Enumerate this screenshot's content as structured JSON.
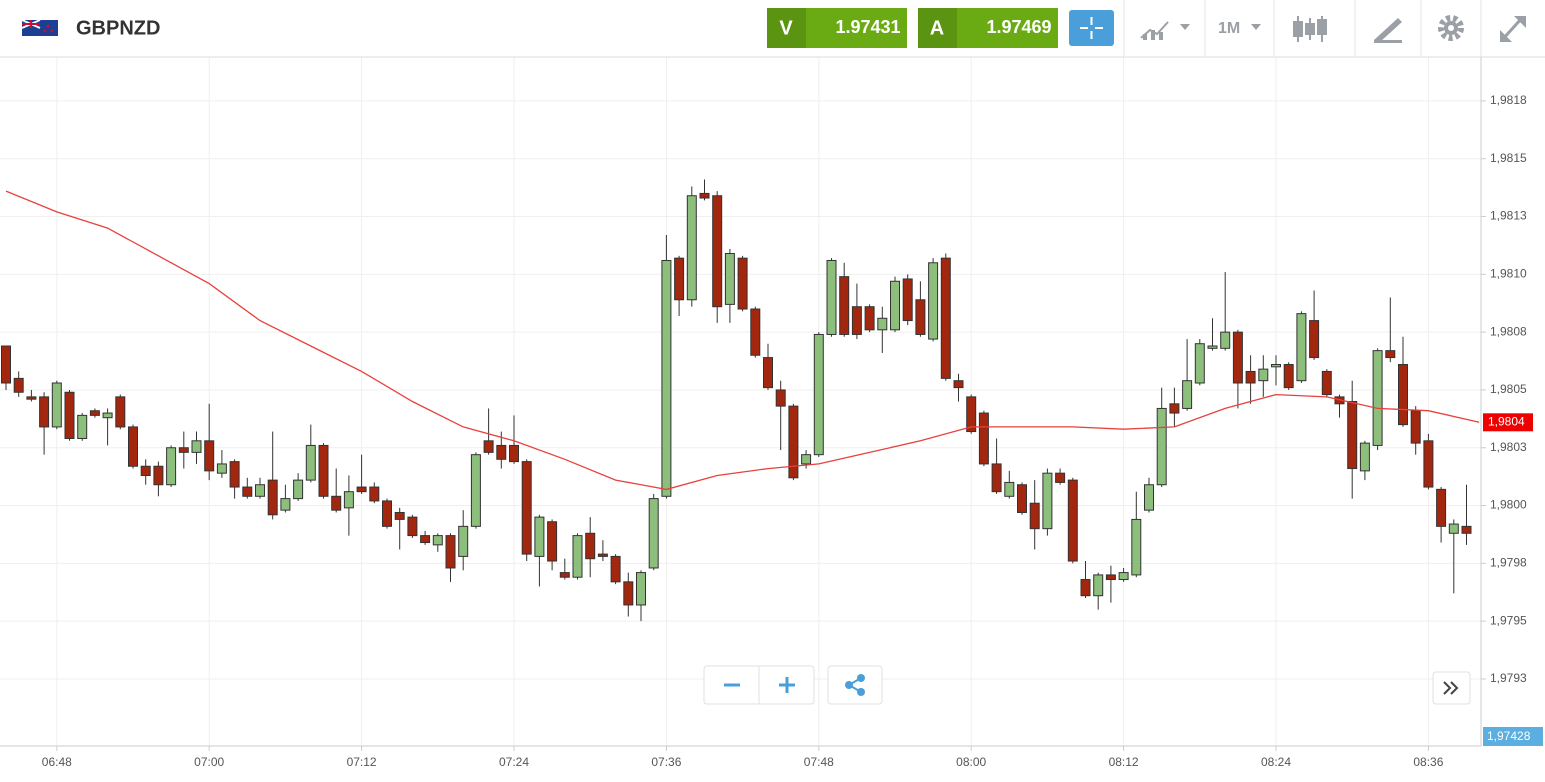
{
  "header": {
    "symbol": "GBPNZD",
    "sell_label": "V",
    "sell_price": "1.97431",
    "buy_label": "A",
    "buy_price": "1.97469",
    "timeframe": "1M"
  },
  "chart_data": {
    "type": "candlestick",
    "x": [
      "06:44",
      "06:45",
      "06:46",
      "06:47",
      "06:48",
      "06:49",
      "06:50",
      "06:51",
      "06:52",
      "06:53",
      "06:54",
      "06:55",
      "06:56",
      "06:57",
      "06:58",
      "06:59",
      "07:00",
      "07:01",
      "07:02",
      "07:03",
      "07:04",
      "07:05",
      "07:06",
      "07:07",
      "07:08",
      "07:09",
      "07:10",
      "07:11",
      "07:12",
      "07:13",
      "07:14",
      "07:15",
      "07:16",
      "07:17",
      "07:18",
      "07:19",
      "07:20",
      "07:21",
      "07:22",
      "07:23",
      "07:24",
      "07:25",
      "07:26",
      "07:27",
      "07:28",
      "07:29",
      "07:30",
      "07:31",
      "07:32",
      "07:33",
      "07:34",
      "07:35",
      "07:36",
      "07:37",
      "07:38",
      "07:39",
      "07:40",
      "07:41",
      "07:42",
      "07:43",
      "07:44",
      "07:45",
      "07:46",
      "07:47",
      "07:48",
      "07:49",
      "07:50",
      "07:51",
      "07:52",
      "07:53",
      "07:54",
      "07:55",
      "07:56",
      "07:57",
      "07:58",
      "07:59",
      "08:00",
      "08:01",
      "08:02",
      "08:03",
      "08:04",
      "08:05",
      "08:06",
      "08:07",
      "08:08",
      "08:09",
      "08:10",
      "08:11",
      "08:12",
      "08:13",
      "08:14",
      "08:15",
      "08:16",
      "08:17",
      "08:18",
      "08:19",
      "08:20",
      "08:21",
      "08:22",
      "08:23",
      "08:24",
      "08:25",
      "08:26",
      "08:27",
      "08:28",
      "08:29",
      "08:30",
      "08:31",
      "08:32",
      "08:33",
      "08:34",
      "08:35",
      "08:36",
      "08:37",
      "08:38",
      "08:39"
    ],
    "open": [
      1.98069,
      1.98055,
      1.98047,
      1.98047,
      1.98034,
      1.98049,
      1.98029,
      1.98041,
      1.98038,
      1.98047,
      1.98034,
      1.98017,
      1.98017,
      1.98009,
      1.98025,
      1.98023,
      1.98028,
      1.98014,
      1.98019,
      1.98008,
      1.98004,
      1.98011,
      1.97998,
      1.98003,
      1.98011,
      1.98026,
      1.98004,
      1.97999,
      1.98008,
      1.98008,
      1.98002,
      1.97997,
      1.97995,
      1.97987,
      1.97983,
      1.97987,
      1.97978,
      1.97991,
      1.98028,
      1.98026,
      1.98026,
      1.98019,
      1.97978,
      1.97993,
      1.97971,
      1.97969,
      1.97988,
      1.97979,
      1.97978,
      1.97967,
      1.97957,
      1.97973,
      1.98004,
      1.98107,
      1.98089,
      1.98135,
      1.98134,
      1.98087,
      1.98107,
      1.98085,
      1.98064,
      1.9805,
      1.98043,
      1.98018,
      1.98022,
      1.98074,
      1.98099,
      1.98086,
      1.98086,
      1.98076,
      1.98076,
      1.98098,
      1.98089,
      1.98072,
      1.98107,
      1.98054,
      1.98047,
      1.9804,
      1.98018,
      1.98004,
      1.98009,
      1.98001,
      1.9799,
      1.98014,
      1.98011,
      1.97968,
      1.97961,
      1.9797,
      1.97968,
      1.9797,
      1.97998,
      1.98009,
      1.98044,
      1.98042,
      1.98053,
      1.98068,
      1.98068,
      1.98075,
      1.98058,
      1.98054,
      1.9806,
      1.98061,
      1.98054,
      1.9808,
      1.98058,
      1.98047,
      1.98045,
      1.98015,
      1.98026,
      1.98067,
      1.98061,
      1.98041,
      1.98028,
      1.98007,
      1.97988,
      1.97991
    ],
    "high": [
      1.98069,
      1.98058,
      1.9805,
      1.98049,
      1.98054,
      1.9805,
      1.9804,
      1.98042,
      1.98042,
      1.98048,
      1.98035,
      1.9802,
      1.98019,
      1.98026,
      1.98032,
      1.98032,
      1.98044,
      1.98024,
      1.9802,
      1.98012,
      1.98012,
      1.98032,
      1.98009,
      1.98014,
      1.98035,
      1.98027,
      1.98016,
      1.98013,
      1.98022,
      1.9801,
      1.98003,
      1.97999,
      1.97996,
      1.97989,
      1.97988,
      1.97988,
      1.97998,
      1.98023,
      1.98042,
      1.98032,
      1.98039,
      1.9802,
      1.97996,
      1.97994,
      1.97977,
      1.97988,
      1.97995,
      1.97985,
      1.97979,
      1.97971,
      1.97972,
      1.98005,
      1.98117,
      1.98108,
      1.98138,
      1.98141,
      1.98136,
      1.98111,
      1.98108,
      1.98086,
      1.9807,
      1.98054,
      1.98044,
      1.98024,
      1.98075,
      1.98107,
      1.98105,
      1.98096,
      1.98087,
      1.98086,
      1.98099,
      1.981,
      1.98097,
      1.98107,
      1.98109,
      1.98057,
      1.98048,
      1.98041,
      1.98029,
      1.98015,
      1.9801,
      1.98011,
      1.98016,
      1.98016,
      1.98012,
      1.97976,
      1.97971,
      1.97974,
      1.97973,
      1.98006,
      1.98012,
      1.98051,
      1.98051,
      1.98072,
      1.98072,
      1.98081,
      1.98101,
      1.98076,
      1.98065,
      1.98065,
      1.98065,
      1.98062,
      1.98084,
      1.98093,
      1.98059,
      1.98048,
      1.98054,
      1.98028,
      1.98068,
      1.9809,
      1.98073,
      1.98043,
      1.98031,
      1.98008,
      1.97994,
      1.98009
    ],
    "low": [
      1.9805,
      1.98047,
      1.98045,
      1.98022,
      1.98033,
      1.98028,
      1.98028,
      1.98038,
      1.98026,
      1.98033,
      1.98016,
      1.98009,
      1.98004,
      1.98008,
      1.98016,
      1.98018,
      1.98011,
      1.98012,
      1.98003,
      1.98003,
      1.98003,
      1.97994,
      1.97997,
      1.98002,
      1.9801,
      1.98003,
      1.97997,
      1.97987,
      1.98005,
      1.98001,
      1.9799,
      1.97981,
      1.97986,
      1.97983,
      1.9798,
      1.97967,
      1.97972,
      1.9799,
      1.98022,
      1.98016,
      1.98018,
      1.97976,
      1.97965,
      1.97972,
      1.97968,
      1.97968,
      1.97969,
      1.97976,
      1.97966,
      1.97952,
      1.9795,
      1.97972,
      1.98003,
      1.98082,
      1.98086,
      1.98132,
      1.98079,
      1.98079,
      1.98084,
      1.98064,
      1.9805,
      1.98024,
      1.98011,
      1.98016,
      1.98021,
      1.98073,
      1.98073,
      1.98072,
      1.98075,
      1.98066,
      1.98075,
      1.98078,
      1.98073,
      1.98071,
      1.98054,
      1.98045,
      1.98031,
      1.98017,
      1.98005,
      1.98003,
      1.97996,
      1.97981,
      1.97987,
      1.98009,
      1.97975,
      1.9796,
      1.97955,
      1.97958,
      1.97967,
      1.97969,
      1.97997,
      1.98008,
      1.98034,
      1.98041,
      1.98052,
      1.98067,
      1.98067,
      1.98042,
      1.98044,
      1.98047,
      1.98052,
      1.9805,
      1.98053,
      1.98063,
      1.98047,
      1.98038,
      1.98003,
      1.98011,
      1.98024,
      1.98062,
      1.98034,
      1.98022,
      1.98007,
      1.97984,
      1.97962,
      1.97983
    ],
    "close": [
      1.98053,
      1.98049,
      1.98046,
      1.98034,
      1.98053,
      1.98029,
      1.98039,
      1.98039,
      1.9804,
      1.98034,
      1.98017,
      1.98013,
      1.98009,
      1.98025,
      1.98023,
      1.98028,
      1.98015,
      1.98018,
      1.98008,
      1.98004,
      1.98009,
      1.97996,
      1.98003,
      1.98011,
      1.98026,
      1.98004,
      1.97998,
      1.98006,
      1.98006,
      1.98002,
      1.97991,
      1.97994,
      1.97987,
      1.97984,
      1.97987,
      1.97973,
      1.97991,
      1.98022,
      1.98023,
      1.9802,
      1.98019,
      1.97979,
      1.97995,
      1.97976,
      1.97969,
      1.97987,
      1.97977,
      1.97978,
      1.97967,
      1.97957,
      1.97971,
      1.98003,
      1.98106,
      1.98089,
      1.98134,
      1.98133,
      1.98086,
      1.98109,
      1.98085,
      1.98065,
      1.98051,
      1.98043,
      1.98012,
      1.98022,
      1.98074,
      1.98106,
      1.98074,
      1.98074,
      1.98076,
      1.98081,
      1.98097,
      1.9808,
      1.98074,
      1.98105,
      1.98055,
      1.98051,
      1.98032,
      1.98018,
      1.98006,
      1.9801,
      1.97997,
      1.9799,
      1.98014,
      1.9801,
      1.97976,
      1.97961,
      1.9797,
      1.97968,
      1.97971,
      1.97994,
      1.98009,
      1.98042,
      1.9804,
      1.98054,
      1.9807,
      1.98069,
      1.98075,
      1.98053,
      1.98053,
      1.98059,
      1.98061,
      1.98051,
      1.98083,
      1.98064,
      1.98048,
      1.98044,
      1.98016,
      1.98027,
      1.98067,
      1.98064,
      1.98035,
      1.98027,
      1.98008,
      1.97991,
      1.97992,
      1.97988
    ],
    "up_color": "#8cbf7c",
    "down_color": "#a3270f",
    "ma": {
      "color": "#e8413c",
      "x": [
        "06:44",
        "06:48",
        "06:52",
        "06:56",
        "07:00",
        "07:04",
        "07:08",
        "07:12",
        "07:16",
        "07:20",
        "07:24",
        "07:28",
        "07:32",
        "07:36",
        "07:40",
        "07:44",
        "07:48",
        "07:52",
        "07:56",
        "08:00",
        "08:04",
        "08:08",
        "08:12",
        "08:16",
        "08:20",
        "08:24",
        "08:28",
        "08:32",
        "08:36",
        "08:40"
      ],
      "values": [
        1.98136,
        1.98127,
        1.9812,
        1.98108,
        1.98096,
        1.9808,
        1.98069,
        1.98058,
        1.98045,
        1.98034,
        1.98028,
        1.9802,
        1.98011,
        1.98007,
        1.98013,
        1.98016,
        1.98018,
        1.98023,
        1.98028,
        1.98034,
        1.98034,
        1.98034,
        1.98033,
        1.98034,
        1.98042,
        1.98048,
        1.98047,
        1.98042,
        1.98041,
        1.98036
      ]
    },
    "last_value_label": "1,9804",
    "price_label": "1,97428",
    "ylim": [
      1.97896,
      1.98194
    ],
    "yticks": [
      {
        "value": 1.98175,
        "label": "1,9818"
      },
      {
        "value": 1.9815,
        "label": "1,9815"
      },
      {
        "value": 1.98125,
        "label": "1,9813"
      },
      {
        "value": 1.981,
        "label": "1,9810"
      },
      {
        "value": 1.98075,
        "label": "1,9808"
      },
      {
        "value": 1.9805,
        "label": "1,9805"
      },
      {
        "value": 1.98025,
        "label": "1,9803"
      },
      {
        "value": 1.98,
        "label": "1,9800"
      },
      {
        "value": 1.97975,
        "label": "1,9798"
      },
      {
        "value": 1.9795,
        "label": "1,9795"
      },
      {
        "value": 1.97925,
        "label": "1,9793"
      }
    ],
    "xticks": [
      "06:48",
      "07:00",
      "07:12",
      "07:24",
      "07:36",
      "07:48",
      "08:00",
      "08:12",
      "08:24",
      "08:36"
    ],
    "grid": true
  }
}
